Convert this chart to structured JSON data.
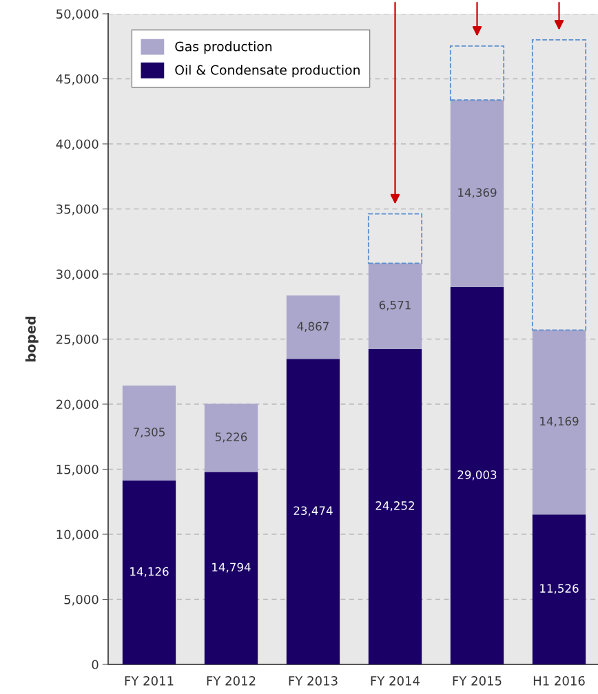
{
  "chart_data": {
    "type": "bar",
    "stacked": true,
    "ylabel": "boped",
    "categories": [
      "FY 2011",
      "FY 2012",
      "FY 2013",
      "FY 2014",
      "FY 2015",
      "H1 2016"
    ],
    "series": [
      {
        "name": "Oil & Condensate production",
        "color": "#1a0066",
        "values": [
          14126,
          14794,
          23474,
          24252,
          29003,
          11526
        ],
        "value_labels": [
          "14,126",
          "14,794",
          "23,474",
          "24,252",
          "29,003",
          "11,526"
        ]
      },
      {
        "name": "Gas production",
        "color": "#aaa6cc",
        "values": [
          7305,
          5226,
          4867,
          6571,
          14369,
          14169
        ],
        "value_labels": [
          "7,305",
          "5,226",
          "4,867",
          "6,571",
          "14,369",
          "14,169"
        ]
      },
      {
        "color": "#5b8fd0",
        "line_style": "dashed",
        "values": [
          null,
          null,
          null,
          3800,
          4150,
          22300
        ]
      }
    ],
    "ylim": [
      0,
      50000
    ],
    "yticks": [
      {
        "value": 0,
        "label": "0"
      },
      {
        "value": 5000,
        "label": "5,000"
      },
      {
        "value": 10000,
        "label": "10,000"
      },
      {
        "value": 15000,
        "label": "15,000"
      },
      {
        "value": 20000,
        "label": "20,000"
      },
      {
        "value": 25000,
        "label": "25,000"
      },
      {
        "value": 30000,
        "label": "30,000"
      },
      {
        "value": 35000,
        "label": "35,000"
      },
      {
        "value": 40000,
        "label": "40,000"
      },
      {
        "value": 45000,
        "label": "45,000"
      },
      {
        "value": 50000,
        "label": "50,000"
      }
    ],
    "grid": "y",
    "legend": "top left"
  }
}
